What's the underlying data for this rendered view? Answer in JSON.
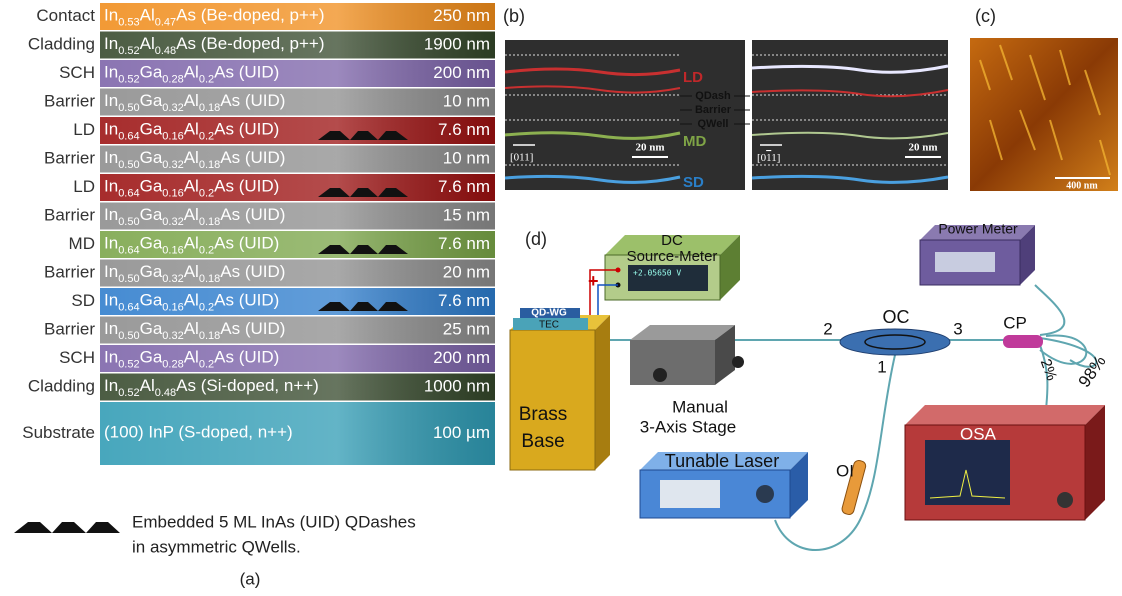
{
  "panel_a": {
    "label": "(a)",
    "layers": [
      {
        "name": "Contact",
        "material": [
          "In",
          "0.53",
          "Al",
          "0.47",
          "As (Be-doped, p++)"
        ],
        "thickness": "250 nm",
        "color": "#f08c1a"
      },
      {
        "name": "Cladding",
        "material": [
          "In",
          "0.52",
          "Al",
          "0.48",
          "As (Be-doped, p++)"
        ],
        "thickness": "1900 nm",
        "color": "#34472a"
      },
      {
        "name": "SCH",
        "material": [
          "In",
          "0.52",
          "Ga",
          "0.28",
          "Al",
          "0.2",
          "As (UID)"
        ],
        "thickness": "200 nm",
        "color": "#7b62a8"
      },
      {
        "name": "Barrier",
        "material": [
          "In",
          "0.50",
          "Ga",
          "0.32",
          "Al",
          "0.18",
          "As (UID)"
        ],
        "thickness": "10 nm",
        "color": "#8c8c8c"
      },
      {
        "name": "LD",
        "name_color": "#c0282a",
        "material": [
          "In",
          "0.64",
          "Ga",
          "0.16",
          "Al",
          "0.2",
          "As (UID)"
        ],
        "thickness": "7.6 nm",
        "color": "#9b1010",
        "qdashes": true
      },
      {
        "name": "Barrier",
        "material": [
          "In",
          "0.50",
          "Ga",
          "0.32",
          "Al",
          "0.18",
          "As (UID)"
        ],
        "thickness": "10 nm",
        "color": "#8c8c8c"
      },
      {
        "name": "LD",
        "name_color": "#c0282a",
        "material": [
          "In",
          "0.64",
          "Ga",
          "0.16",
          "Al",
          "0.2",
          "As (UID)"
        ],
        "thickness": "7.6 nm",
        "color": "#9b1010",
        "qdashes": true
      },
      {
        "name": "Barrier",
        "material": [
          "In",
          "0.50",
          "Ga",
          "0.32",
          "Al",
          "0.18",
          "As (UID)"
        ],
        "thickness": "15 nm",
        "color": "#8c8c8c"
      },
      {
        "name": "MD",
        "name_color": "#6f9a3a",
        "material": [
          "In",
          "0.64",
          "Ga",
          "0.16",
          "Al",
          "0.2",
          "As (UID)"
        ],
        "thickness": "7.6 nm",
        "color": "#79a447",
        "qdashes": true
      },
      {
        "name": "Barrier",
        "material": [
          "In",
          "0.50",
          "Ga",
          "0.32",
          "Al",
          "0.18",
          "As (UID)"
        ],
        "thickness": "20 nm",
        "color": "#8c8c8c"
      },
      {
        "name": "SD",
        "name_color": "#2a7fc8",
        "material": [
          "In",
          "0.64",
          "Ga",
          "0.16",
          "Al",
          "0.2",
          "As (UID)"
        ],
        "thickness": "7.6 nm",
        "color": "#2d7ccc",
        "qdashes": true
      },
      {
        "name": "Barrier",
        "material": [
          "In",
          "0.50",
          "Ga",
          "0.32",
          "Al",
          "0.18",
          "As (UID)"
        ],
        "thickness": "25 nm",
        "color": "#8c8c8c"
      },
      {
        "name": "SCH",
        "material": [
          "In",
          "0.52",
          "Ga",
          "0.28",
          "Al",
          "0.2",
          "As (UID)"
        ],
        "thickness": "200 nm",
        "color": "#7b62a8"
      },
      {
        "name": "Cladding",
        "material": [
          "In",
          "0.52",
          "Al",
          "0.48",
          "As (Si-doped, n++)"
        ],
        "thickness": "1000 nm",
        "color": "#34472a"
      },
      {
        "name": "Substrate",
        "material": [
          "(100) InP (S-doped, n++)"
        ],
        "thickness": "100 µm",
        "color": "#2f9bb4",
        "tall": true
      }
    ],
    "legend": [
      "Embedded 5 ML InAs (UID) QDashes",
      "in asymmetric QWells."
    ]
  },
  "panel_b": {
    "label": "(b)",
    "annotations": {
      "ld": "LD",
      "qdash": "QDash",
      "barrier": "Barrier",
      "qwell": "QWell",
      "md": "MD",
      "sd": "SD"
    },
    "direction_left": "[011]",
    "direction_right": [
      "[0",
      "1",
      "1]"
    ],
    "scale_left": "20 nm",
    "scale_right": "20 nm"
  },
  "panel_c": {
    "label": "(c)",
    "scale": "400 nm"
  },
  "panel_d": {
    "label": "(d)",
    "source_meter": [
      "DC",
      "Source-Meter"
    ],
    "display": "+2.05650 V",
    "power_meter": "Power Meter",
    "oc": "OC",
    "ports": [
      "2",
      "3",
      "1"
    ],
    "cp": "CP",
    "split_high": "98%",
    "split_low": "2%",
    "device": "QD-WG",
    "tec": "TEC",
    "base": [
      "Brass",
      "Base"
    ],
    "stage": [
      "Manual",
      "3-Axis Stage"
    ],
    "laser": "Tunable Laser",
    "isolator": "OI",
    "osa": "OSA"
  }
}
